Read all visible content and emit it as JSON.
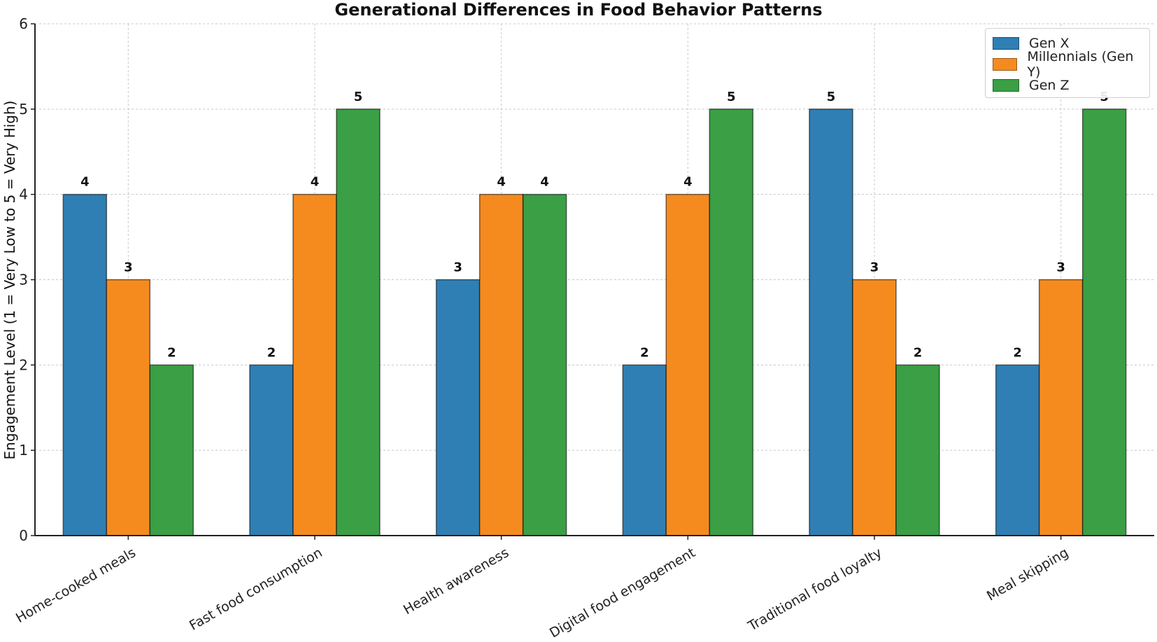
{
  "chart_data": {
    "type": "bar",
    "title": "Generational Differences in Food Behavior Patterns",
    "xlabel": "",
    "ylabel": "Engagement Level (1 = Very Low to 5 = Very High)",
    "ylim": [
      0,
      6
    ],
    "yticks": [
      0,
      1,
      2,
      3,
      4,
      5,
      6
    ],
    "grid": true,
    "legend_position": "top-right",
    "categories": [
      "Home-cooked meals",
      "Fast food consumption",
      "Health awareness",
      "Digital food engagement",
      "Traditional food loyalty",
      "Meal skipping"
    ],
    "series": [
      {
        "name": "Gen X",
        "color": "#2f7fb4",
        "values": [
          4,
          2,
          3,
          2,
          5,
          2
        ]
      },
      {
        "name": "Millennials (Gen Y)",
        "color": "#f58b1f",
        "values": [
          3,
          4,
          4,
          4,
          3,
          3
        ]
      },
      {
        "name": "Gen Z",
        "color": "#3a9f45",
        "values": [
          2,
          5,
          4,
          5,
          2,
          5
        ]
      }
    ]
  }
}
